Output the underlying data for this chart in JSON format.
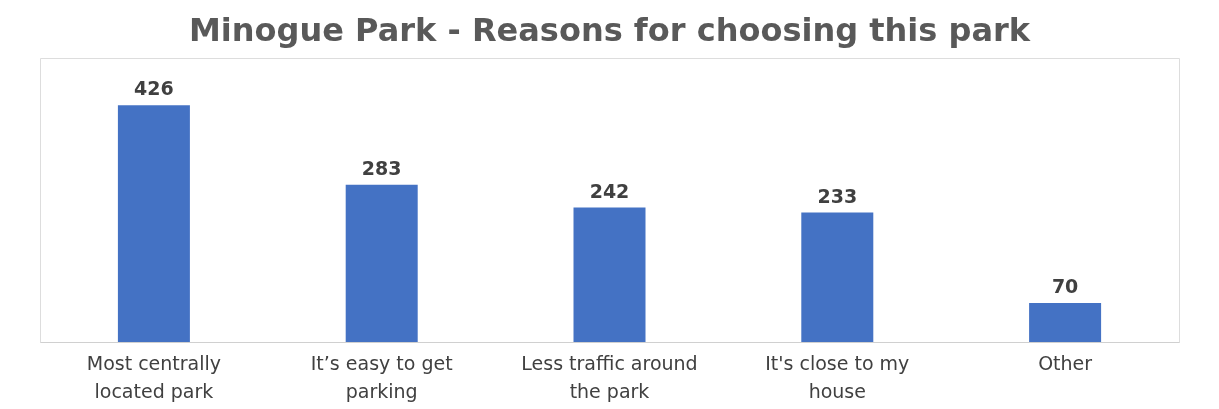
{
  "chart_data": {
    "type": "bar",
    "title": "Minogue Park - Reasons for choosing this park",
    "categories": [
      "Most centrally located park",
      "It’s easy to get parking",
      "Less traffic around the park",
      "It's close to my house",
      "Other"
    ],
    "values": [
      426,
      283,
      242,
      233,
      70
    ],
    "color": "#4472c4",
    "data_labels": true,
    "grid": false
  }
}
